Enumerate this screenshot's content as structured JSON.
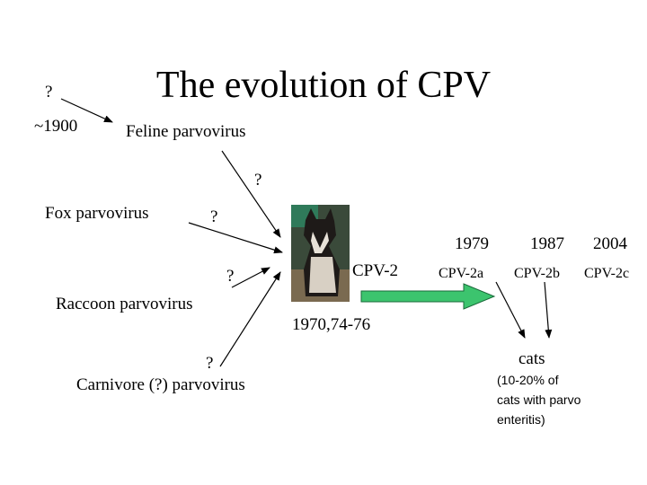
{
  "title": "The evolution of CPV",
  "hosts": [
    {
      "question": "?",
      "label": "Feline parvovirus",
      "date": "~1900",
      "date_question": "?"
    },
    {
      "question": "?",
      "label": "Fox parvovirus"
    },
    {
      "question": "?",
      "label": "Raccoon parvovirus"
    },
    {
      "question": "?",
      "label": "Carnivore (?) parvovirus"
    }
  ],
  "cpv2": {
    "label": "CPV-2",
    "years": "1970,74-76"
  },
  "variants": [
    {
      "year": "1979",
      "label": "CPV-2a"
    },
    {
      "year": "1987",
      "label": "CPV-2b"
    },
    {
      "year": "2004",
      "label": "CPV-2c"
    }
  ],
  "cats": {
    "label": "cats",
    "note": [
      "(10-20% of",
      "cats with parvo",
      "enteritis)"
    ]
  }
}
